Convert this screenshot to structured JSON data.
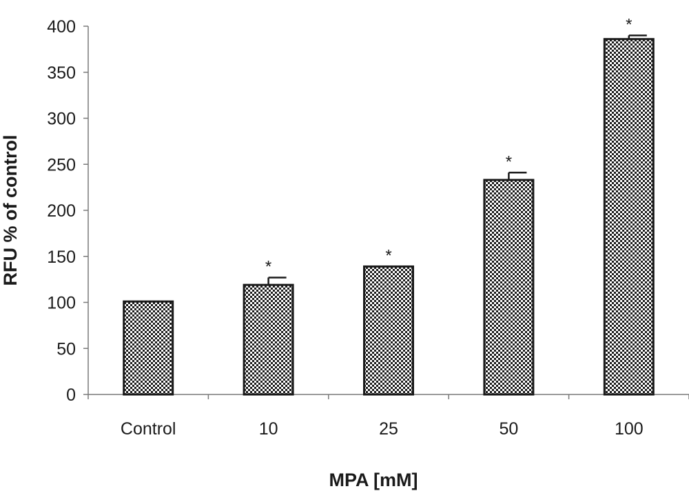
{
  "chart_data": {
    "type": "bar",
    "title": "",
    "xlabel": "MPA [mM]",
    "ylabel": "RFU % of control",
    "ylim": [
      0,
      400
    ],
    "yticks": [
      0,
      50,
      100,
      150,
      200,
      250,
      300,
      350,
      400
    ],
    "categories": [
      "Control",
      "10",
      "25",
      "50",
      "100"
    ],
    "values": [
      101,
      119,
      139,
      233,
      386
    ],
    "errors": [
      0,
      8,
      0,
      8,
      4
    ],
    "annotations": [
      "",
      "*",
      "*",
      "*",
      "*"
    ],
    "grid": false,
    "legend": "none",
    "colors": {
      "bar_pattern_dark": "#1a1a1a",
      "bar_pattern_light": "#ffffff",
      "axis": "#7a7a7a",
      "text": "#1a1a1a"
    }
  }
}
